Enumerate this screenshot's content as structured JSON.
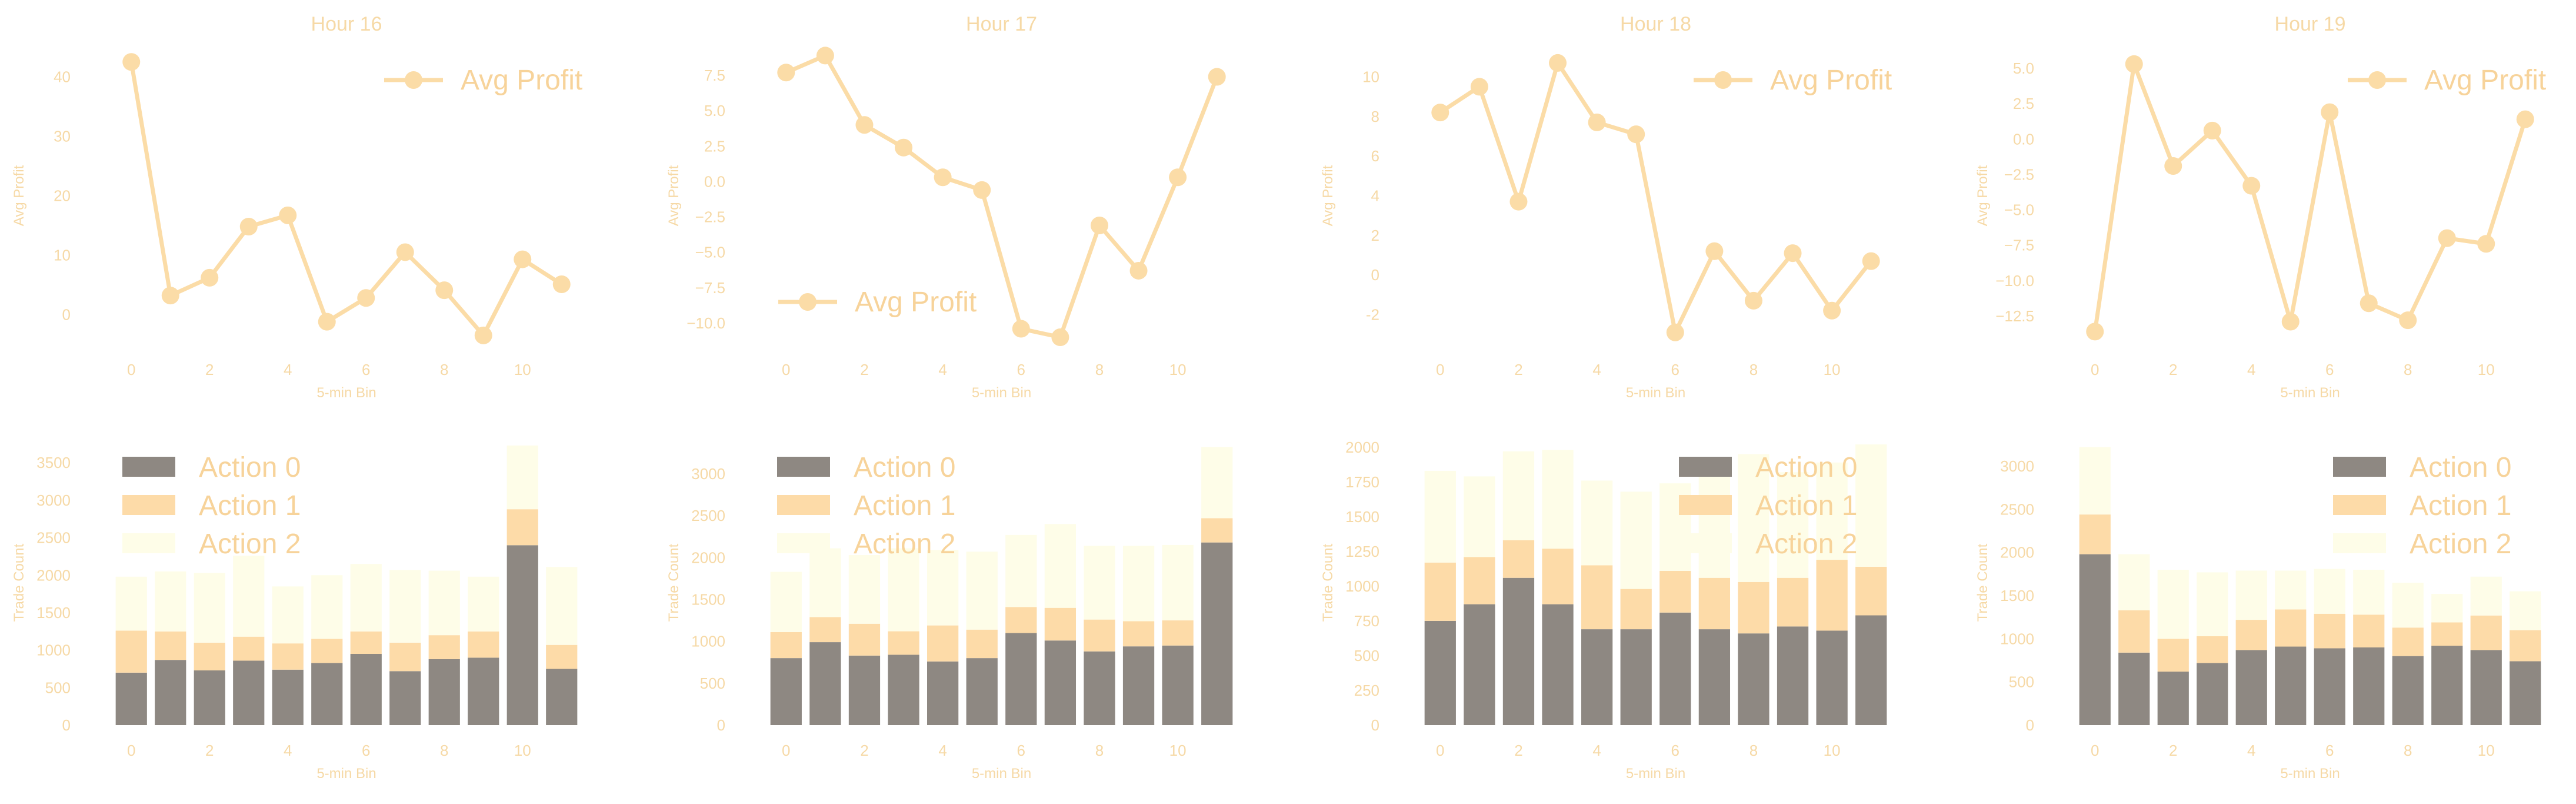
{
  "colors": {
    "line": "#fbdca7",
    "action_0": "#8e8882",
    "action_1": "#fddba8",
    "action_2": "#fefde8",
    "text": "#f6d9a6"
  },
  "chart_data": [
    {
      "type": "line",
      "title": "Hour 16",
      "xlabel": "5-min Bin",
      "ylabel": "Avg Profit",
      "legend_position": "top-right",
      "x": [
        0,
        1,
        2,
        3,
        4,
        5,
        6,
        7,
        8,
        9,
        10,
        11
      ],
      "x_ticks": [
        0,
        2,
        4,
        6,
        8,
        10
      ],
      "y_ticks": [
        0,
        10,
        20,
        30,
        40
      ],
      "ylim": [
        -5,
        45
      ],
      "series": [
        {
          "name": "Avg Profit",
          "values": [
            42.5,
            3.2,
            6.2,
            14.8,
            16.7,
            -1.2,
            2.8,
            10.5,
            4.1,
            -3.5,
            9.3,
            5.1
          ]
        }
      ]
    },
    {
      "type": "line",
      "title": "Hour 17",
      "xlabel": "5-min Bin",
      "ylabel": "Avg Profit",
      "legend_position": "bottom-left",
      "x": [
        0,
        1,
        2,
        3,
        4,
        5,
        6,
        7,
        8,
        9,
        10,
        11
      ],
      "x_ticks": [
        0,
        2,
        4,
        6,
        8,
        10
      ],
      "y_ticks": [
        -10.0,
        -7.5,
        -5.0,
        -2.5,
        0.0,
        2.5,
        5.0,
        7.5
      ],
      "ylim": [
        -11.5,
        9.5
      ],
      "series": [
        {
          "name": "Avg Profit",
          "values": [
            7.7,
            8.9,
            4.0,
            2.4,
            0.3,
            -0.6,
            -10.4,
            -11.0,
            -3.1,
            -6.3,
            0.3,
            7.4
          ]
        }
      ]
    },
    {
      "type": "line",
      "title": "Hour 18",
      "xlabel": "5-min Bin",
      "ylabel": "Avg Profit",
      "legend_position": "top-right",
      "x": [
        0,
        1,
        2,
        3,
        4,
        5,
        6,
        7,
        8,
        9,
        10,
        11
      ],
      "x_ticks": [
        0,
        2,
        4,
        6,
        8,
        10
      ],
      "y_ticks": [
        -2,
        0,
        2,
        4,
        6,
        8,
        10
      ],
      "ylim": [
        -3.5,
        11.5
      ],
      "series": [
        {
          "name": "Avg Profit",
          "values": [
            8.2,
            9.5,
            3.7,
            10.7,
            7.7,
            7.1,
            -2.9,
            1.2,
            -1.3,
            1.1,
            -1.8,
            0.7
          ]
        }
      ]
    },
    {
      "type": "line",
      "title": "Hour 19",
      "xlabel": "5-min Bin",
      "ylabel": "Avg Profit",
      "legend_position": "top-right",
      "x": [
        0,
        1,
        2,
        3,
        4,
        5,
        6,
        7,
        8,
        9,
        10,
        11
      ],
      "x_ticks": [
        0,
        2,
        4,
        6,
        8,
        10
      ],
      "y_ticks": [
        -12.5,
        -10.0,
        -7.5,
        -5.0,
        -2.5,
        0.0,
        2.5,
        5.0
      ],
      "ylim": [
        -14.5,
        6.5
      ],
      "series": [
        {
          "name": "Avg Profit",
          "values": [
            -13.6,
            5.3,
            -1.9,
            0.6,
            -3.3,
            -12.9,
            1.9,
            -11.6,
            -12.8,
            -7.0,
            -7.4,
            1.4
          ]
        }
      ]
    },
    {
      "type": "bar",
      "stacked": true,
      "xlabel": "5-min Bin",
      "ylabel": "Trade Count",
      "legend_position": "top-left",
      "categories": [
        0,
        1,
        2,
        3,
        4,
        5,
        6,
        7,
        8,
        9,
        10,
        11
      ],
      "x_ticks": [
        0,
        2,
        4,
        6,
        8,
        10
      ],
      "y_ticks": [
        0,
        500,
        1000,
        1500,
        2000,
        2500,
        3000,
        3500
      ],
      "ylim": [
        0,
        3800
      ],
      "series": [
        {
          "name": "Action 0",
          "values": [
            700,
            870,
            730,
            860,
            740,
            830,
            950,
            720,
            880,
            900,
            2400,
            750
          ]
        },
        {
          "name": "Action 1",
          "values": [
            560,
            380,
            370,
            320,
            350,
            320,
            300,
            380,
            320,
            350,
            480,
            320
          ]
        },
        {
          "name": "Action 2",
          "values": [
            720,
            800,
            930,
            1080,
            760,
            850,
            900,
            970,
            860,
            730,
            850,
            1040
          ]
        }
      ]
    },
    {
      "type": "bar",
      "stacked": true,
      "xlabel": "5-min Bin",
      "ylabel": "Trade Count",
      "legend_position": "top-left",
      "categories": [
        0,
        1,
        2,
        3,
        4,
        5,
        6,
        7,
        8,
        9,
        10,
        11
      ],
      "x_ticks": [
        0,
        2,
        4,
        6,
        8,
        10
      ],
      "y_ticks": [
        0,
        500,
        1000,
        1500,
        2000,
        2500,
        3000
      ],
      "ylim": [
        0,
        3400
      ],
      "series": [
        {
          "name": "Action 0",
          "values": [
            800,
            990,
            830,
            840,
            760,
            800,
            1100,
            1010,
            880,
            940,
            950,
            2180
          ]
        },
        {
          "name": "Action 1",
          "values": [
            310,
            300,
            380,
            280,
            430,
            340,
            310,
            390,
            380,
            300,
            300,
            290
          ]
        },
        {
          "name": "Action 2",
          "values": [
            720,
            820,
            820,
            990,
            900,
            930,
            860,
            1000,
            880,
            900,
            900,
            850
          ]
        }
      ]
    },
    {
      "type": "bar",
      "stacked": true,
      "xlabel": "5-min Bin",
      "ylabel": "Trade Count",
      "legend_position": "top-right",
      "categories": [
        0,
        1,
        2,
        3,
        4,
        5,
        6,
        7,
        8,
        9,
        10,
        11
      ],
      "x_ticks": [
        0,
        2,
        4,
        6,
        8,
        10
      ],
      "y_ticks": [
        0,
        250,
        500,
        750,
        1000,
        1250,
        1500,
        1750,
        2000
      ],
      "ylim": [
        0,
        2050
      ],
      "series": [
        {
          "name": "Action 0",
          "values": [
            750,
            870,
            1060,
            870,
            690,
            690,
            810,
            690,
            660,
            710,
            680,
            790
          ]
        },
        {
          "name": "Action 1",
          "values": [
            420,
            340,
            270,
            400,
            460,
            290,
            300,
            370,
            370,
            350,
            510,
            350
          ]
        },
        {
          "name": "Action 2",
          "values": [
            660,
            580,
            640,
            710,
            610,
            700,
            630,
            800,
            920,
            760,
            700,
            880
          ]
        }
      ]
    },
    {
      "type": "bar",
      "stacked": true,
      "xlabel": "5-min Bin",
      "ylabel": "Trade Count",
      "legend_position": "top-right",
      "categories": [
        0,
        1,
        2,
        3,
        4,
        5,
        6,
        7,
        8,
        9,
        10,
        11
      ],
      "x_ticks": [
        0,
        2,
        4,
        6,
        8,
        10
      ],
      "y_ticks": [
        0,
        500,
        1000,
        1500,
        2000,
        2500,
        3000
      ],
      "ylim": [
        0,
        3300
      ],
      "series": [
        {
          "name": "Action 0",
          "values": [
            1980,
            840,
            620,
            720,
            870,
            910,
            890,
            900,
            800,
            920,
            870,
            740
          ]
        },
        {
          "name": "Action 1",
          "values": [
            460,
            490,
            380,
            310,
            350,
            430,
            400,
            380,
            330,
            270,
            400,
            360
          ]
        },
        {
          "name": "Action 2",
          "values": [
            780,
            650,
            800,
            740,
            570,
            450,
            520,
            520,
            520,
            330,
            450,
            450
          ]
        }
      ]
    }
  ]
}
